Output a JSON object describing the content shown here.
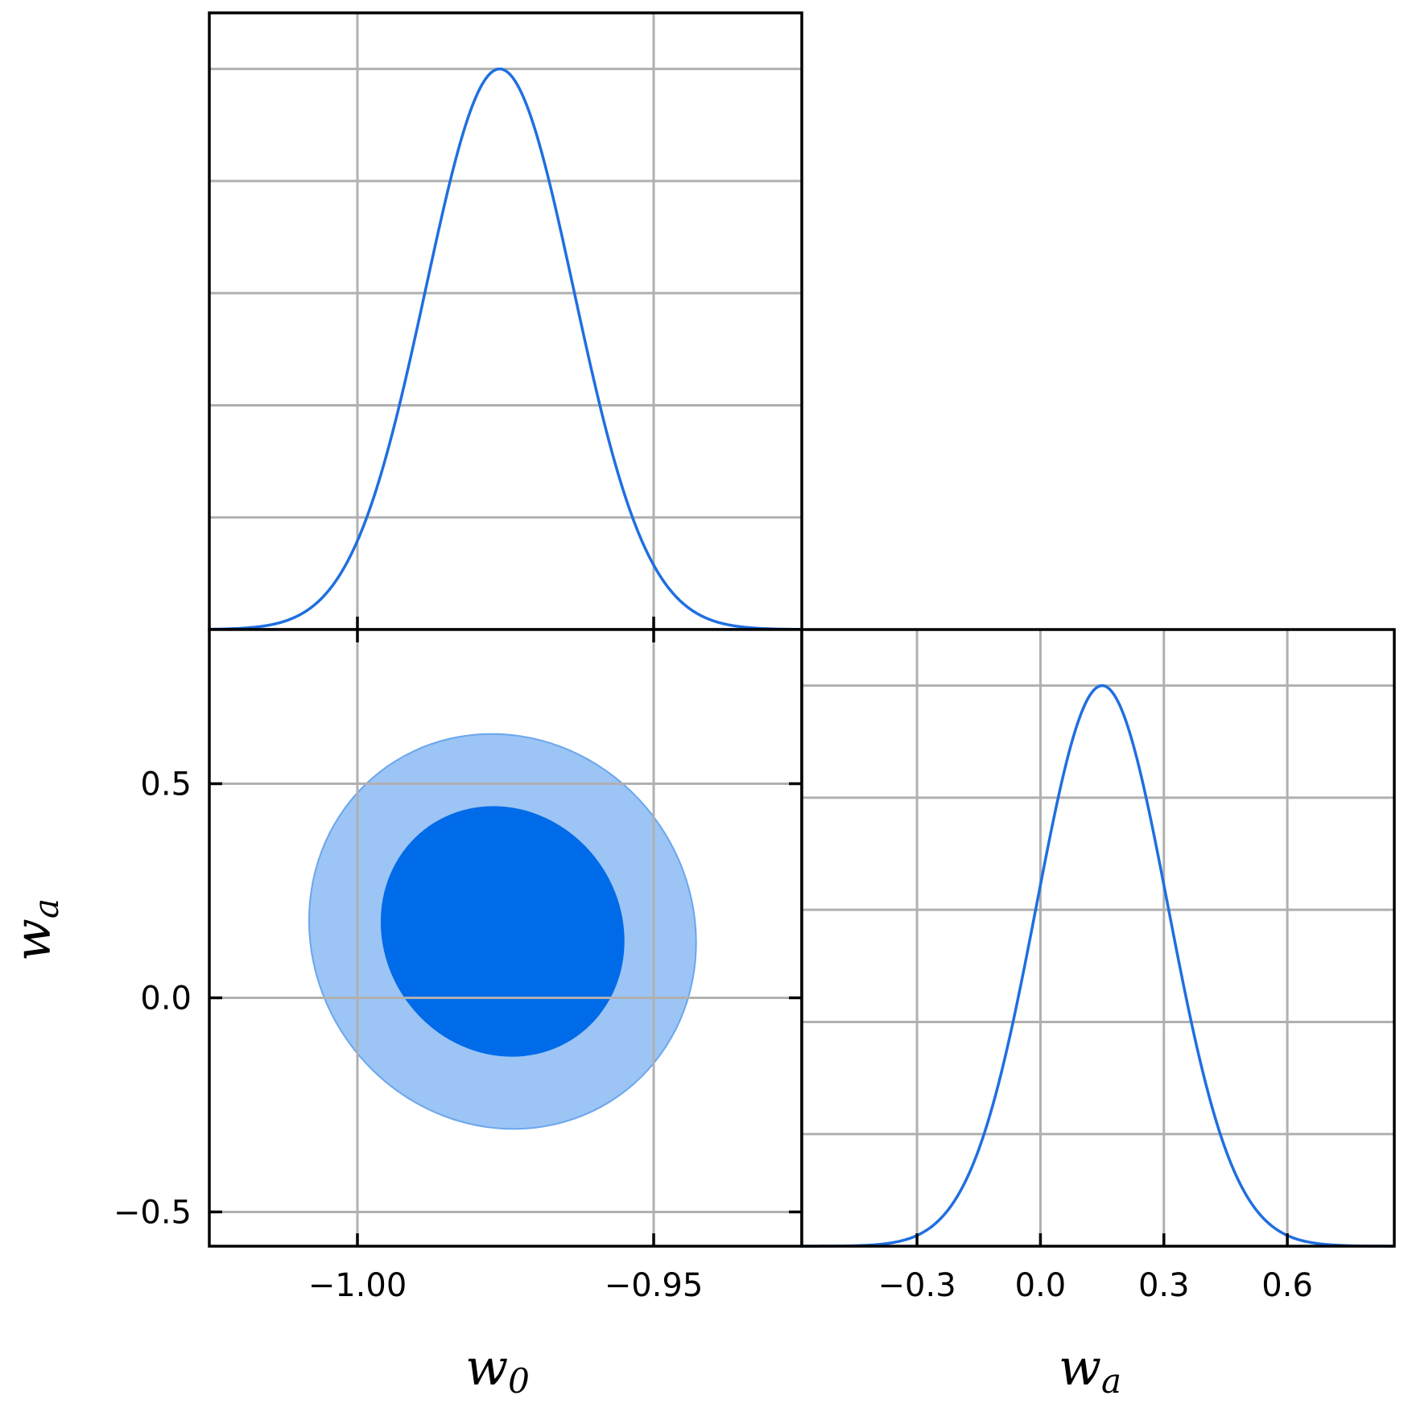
{
  "colors": {
    "line": "#1f6fe0",
    "contour_inner": "#006be8",
    "contour_outer": "#9cc4f5",
    "contour_edge": "#6aa6ee"
  },
  "chart_data": [
    {
      "id": "w0-marginal",
      "type": "line",
      "description_kind": "1D marginal posterior",
      "xlim": [
        -1.025,
        -0.925
      ],
      "ylim": [
        0,
        1.1
      ],
      "x_ticks": [
        -1.0,
        -0.95
      ],
      "y_ticks_count": 5,
      "series": [
        {
          "mean": -0.976,
          "sigma": 0.0125
        }
      ]
    },
    {
      "id": "w0-wa-joint",
      "type": "scatter",
      "description_kind": "2D joint posterior contours (68% and 95%)",
      "xlim": [
        -1.025,
        -0.925
      ],
      "ylim": [
        -0.58,
        0.86
      ],
      "x_ticks": [
        -1.0,
        -0.95
      ],
      "x_tick_labels": [
        "−1.00",
        "−0.95"
      ],
      "y_ticks": [
        -0.5,
        0.0,
        0.5
      ],
      "y_tick_labels": [
        "−0.5",
        "0.0",
        "0.5"
      ],
      "contours": [
        {
          "level": "95%",
          "center": [
            -0.9755,
            0.155
          ],
          "semi_axes_data": [
            0.032,
            0.47
          ],
          "rotation_deg": -35
        },
        {
          "level": "68%",
          "center": [
            -0.9755,
            0.155
          ],
          "semi_axes_data": [
            0.02,
            0.3
          ],
          "rotation_deg": -35
        }
      ],
      "xlabel": "w",
      "xlabel_sub": "0",
      "ylabel": "w",
      "ylabel_sub": "a"
    },
    {
      "id": "wa-marginal",
      "type": "line",
      "description_kind": "1D marginal posterior",
      "xlim": [
        -0.58,
        0.86
      ],
      "ylim": [
        0,
        1.1
      ],
      "x_ticks": [
        -0.3,
        0.0,
        0.3,
        0.6
      ],
      "x_tick_labels": [
        "−0.3",
        "0.0",
        "0.3",
        "0.6"
      ],
      "y_ticks_count": 5,
      "series": [
        {
          "mean": 0.15,
          "sigma": 0.16
        }
      ],
      "xlabel": "w",
      "xlabel_sub": "a"
    }
  ]
}
